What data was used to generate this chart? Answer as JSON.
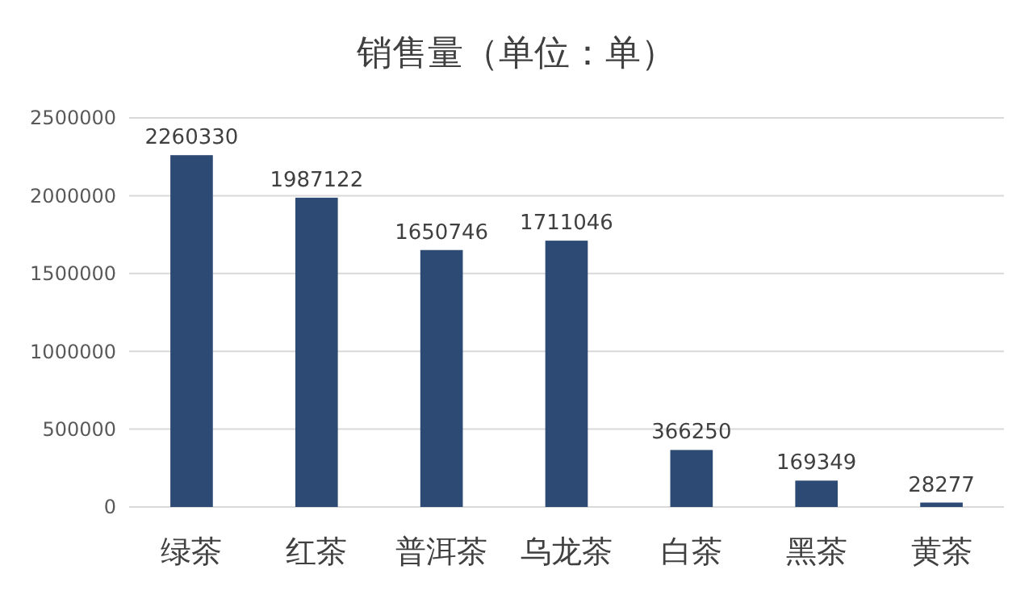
{
  "chart_data": {
    "type": "bar",
    "title": "销售量（单位：单）",
    "categories": [
      "绿茶",
      "红茶",
      "普洱茶",
      "乌龙茶",
      "白茶",
      "黑茶",
      "黄茶"
    ],
    "values": [
      2260330,
      1987122,
      1650746,
      1711046,
      366250,
      169349,
      28277
    ],
    "color": "#2c4a74",
    "ylim": [
      0,
      2500000
    ],
    "yticks": [
      0,
      500000,
      1000000,
      1500000,
      2000000,
      2500000
    ],
    "grid": "y",
    "data_labels": true
  }
}
